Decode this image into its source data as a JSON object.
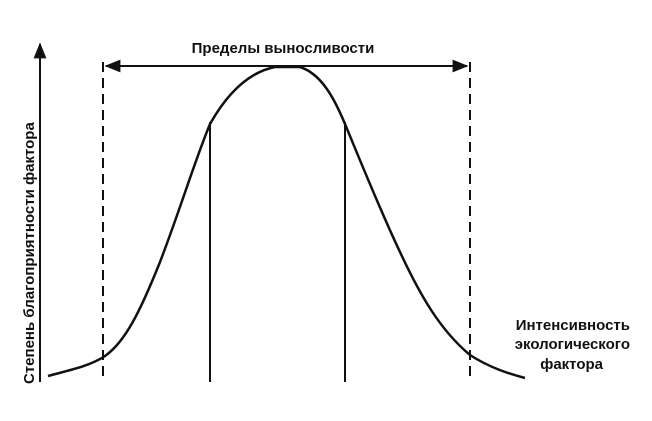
{
  "title": "Пределы выносливости",
  "y_axis_label": "Степень благоприятности фактора",
  "x_axis_label": [
    "Интенсивность",
    "экологического",
    "фактора"
  ]
}
